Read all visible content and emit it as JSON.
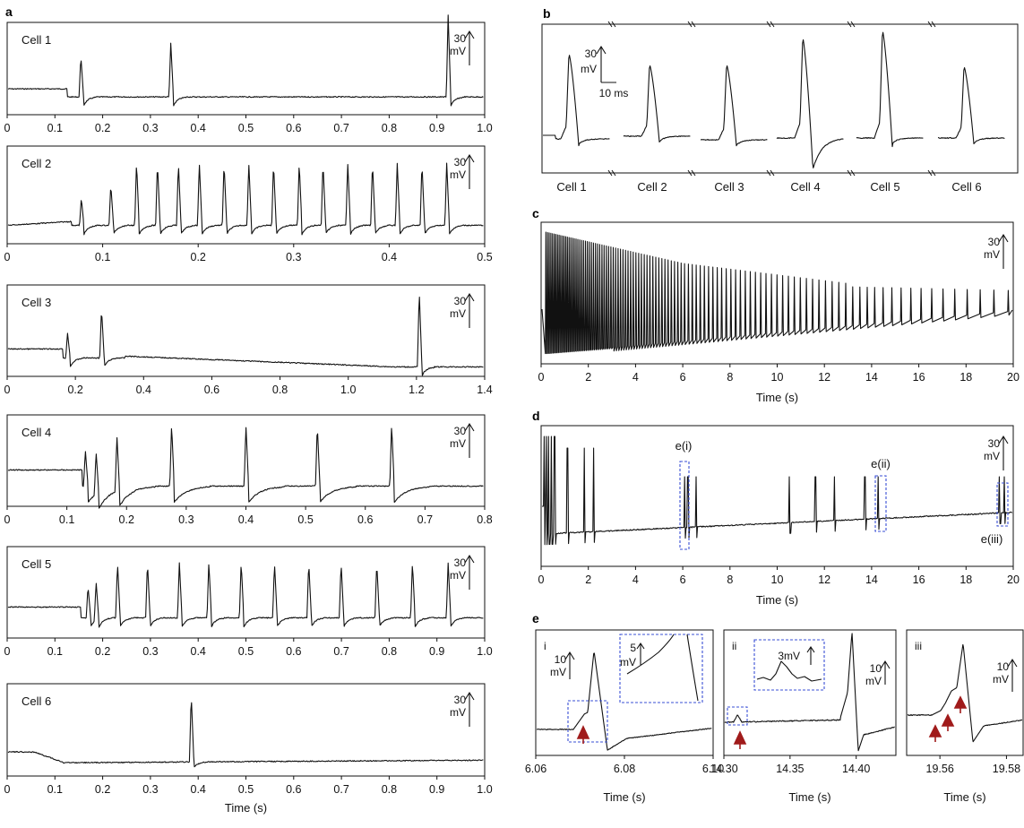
{
  "panel_labels": {
    "a": "a",
    "b": "b",
    "c": "c",
    "d": "d",
    "e": "e"
  },
  "colors": {
    "cell1": "#e11f26",
    "cell2": "#4b6fa8",
    "cell3": "#f2b705",
    "cell4": "#1aa35a",
    "cell5": "#6e6ba8",
    "cell6": "#8c8c8c",
    "marker": "#a01b1b",
    "dashed": "#3a4fd6"
  },
  "chart_data": [
    {
      "id": "a1",
      "type": "line",
      "label": "Cell 1",
      "xlim": [
        0,
        1.0
      ],
      "xticks": [
        "0",
        "0.1",
        "0.2",
        "0.3",
        "0.4",
        "0.5",
        "0.6",
        "0.7",
        "0.8",
        "0.9",
        "1.0"
      ],
      "scale": {
        "value": "30",
        "unit": "mV"
      },
      "spike_times": [
        0.153,
        0.342,
        0.925
      ]
    },
    {
      "id": "a2",
      "type": "line",
      "label": "Cell 2",
      "xlim": [
        0,
        0.5
      ],
      "xticks": [
        "0",
        "0.1",
        "0.2",
        "0.3",
        "0.4",
        "0.5"
      ],
      "scale": {
        "value": "30",
        "unit": "mV"
      },
      "spike_times": [
        0.077,
        0.108,
        0.135,
        0.157,
        0.179,
        0.201,
        0.227,
        0.253,
        0.279,
        0.306,
        0.331,
        0.357,
        0.383,
        0.409,
        0.435,
        0.461
      ]
    },
    {
      "id": "a3",
      "type": "line",
      "label": "Cell 3",
      "xlim": [
        0,
        1.4
      ],
      "xticks": [
        "0",
        "0.2",
        "0.4",
        "0.6",
        "0.8",
        "1.0",
        "1.2",
        "1.4"
      ],
      "scale": {
        "value": "30",
        "unit": "mV"
      },
      "spike_times": [
        0.175,
        0.275,
        1.21
      ]
    },
    {
      "id": "a4",
      "type": "line",
      "label": "Cell 4",
      "xlim": [
        0,
        0.8
      ],
      "xticks": [
        "0",
        "0.1",
        "0.2",
        "0.3",
        "0.4",
        "0.5",
        "0.6",
        "0.7",
        "0.8"
      ],
      "scale": {
        "value": "30",
        "unit": "mV"
      },
      "spike_times": [
        0.13,
        0.148,
        0.183,
        0.275,
        0.4,
        0.52,
        0.645
      ]
    },
    {
      "id": "a5",
      "type": "line",
      "label": "Cell 5",
      "xlim": [
        0,
        1.0
      ],
      "xticks": [
        "0",
        "0.1",
        "0.2",
        "0.3",
        "0.4",
        "0.5",
        "0.6",
        "0.7",
        "0.8",
        "0.9",
        "1.0"
      ],
      "scale": {
        "value": "30",
        "unit": "mV"
      },
      "spike_times": [
        0.168,
        0.185,
        0.23,
        0.293,
        0.36,
        0.422,
        0.49,
        0.56,
        0.632,
        0.7,
        0.775,
        0.85,
        0.925
      ]
    },
    {
      "id": "a6",
      "type": "line",
      "label": "Cell 6",
      "xlim": [
        0,
        1.0
      ],
      "xticks": [
        "0",
        "0.1",
        "0.2",
        "0.3",
        "0.4",
        "0.5",
        "0.6",
        "0.7",
        "0.8",
        "0.9",
        "1.0"
      ],
      "xlabel": "Time (s)",
      "scale": {
        "value": "30",
        "unit": "mV"
      },
      "spike_times": [
        0.385
      ]
    },
    {
      "id": "b",
      "type": "line",
      "cells": [
        "Cell 1",
        "Cell 2",
        "Cell 3",
        "Cell 4",
        "Cell 5",
        "Cell 6"
      ],
      "scale": {
        "value": "30",
        "unit": "mV",
        "time": "10 ms"
      }
    },
    {
      "id": "c",
      "type": "line",
      "xlim": [
        0,
        20
      ],
      "xticks": [
        "0",
        "2",
        "4",
        "6",
        "8",
        "10",
        "12",
        "14",
        "16",
        "18",
        "20"
      ],
      "xlabel": "Time (s)",
      "scale": {
        "value": "30",
        "unit": "mV"
      }
    },
    {
      "id": "d",
      "type": "line",
      "xlim": [
        0,
        20
      ],
      "xticks": [
        "0",
        "2",
        "4",
        "6",
        "8",
        "10",
        "12",
        "14",
        "16",
        "18",
        "20"
      ],
      "xlabel": "Time (s)",
      "scale": {
        "value": "30",
        "unit": "mV"
      },
      "annotations": [
        "e(i)",
        "e(ii)",
        "e(iii)"
      ],
      "spike_times": [
        0.1,
        0.2,
        0.3,
        0.42,
        0.55,
        1.1,
        1.8,
        2.2,
        6.05,
        6.2,
        6.55,
        10.5,
        11.6,
        12.4,
        13.7,
        14.25,
        19.4,
        19.6
      ]
    },
    {
      "id": "e_i",
      "type": "line",
      "label": "i",
      "xlim": [
        6.06,
        6.1
      ],
      "xticks": [
        "6.06",
        "6.08",
        "6.10"
      ],
      "xlabel": "Time (s)",
      "scale": {
        "value": "10",
        "unit": "mV"
      },
      "inset_scale": {
        "value": "5",
        "unit": "mV"
      }
    },
    {
      "id": "e_ii",
      "type": "line",
      "label": "ii",
      "xlim": [
        14.3,
        14.43
      ],
      "xticks": [
        "14.30",
        "14.35",
        "14.40"
      ],
      "xlabel": "Time (s)",
      "scale": {
        "value": "10",
        "unit": "mV"
      },
      "inset_scale": {
        "value": "3mV",
        "unit": ""
      }
    },
    {
      "id": "e_iii",
      "type": "line",
      "label": "iii",
      "xlim": [
        19.55,
        19.585
      ],
      "xticks": [
        "19.56",
        "19.58"
      ],
      "xlabel": "Time (s)",
      "scale": {
        "value": "10",
        "unit": "mV"
      }
    }
  ]
}
